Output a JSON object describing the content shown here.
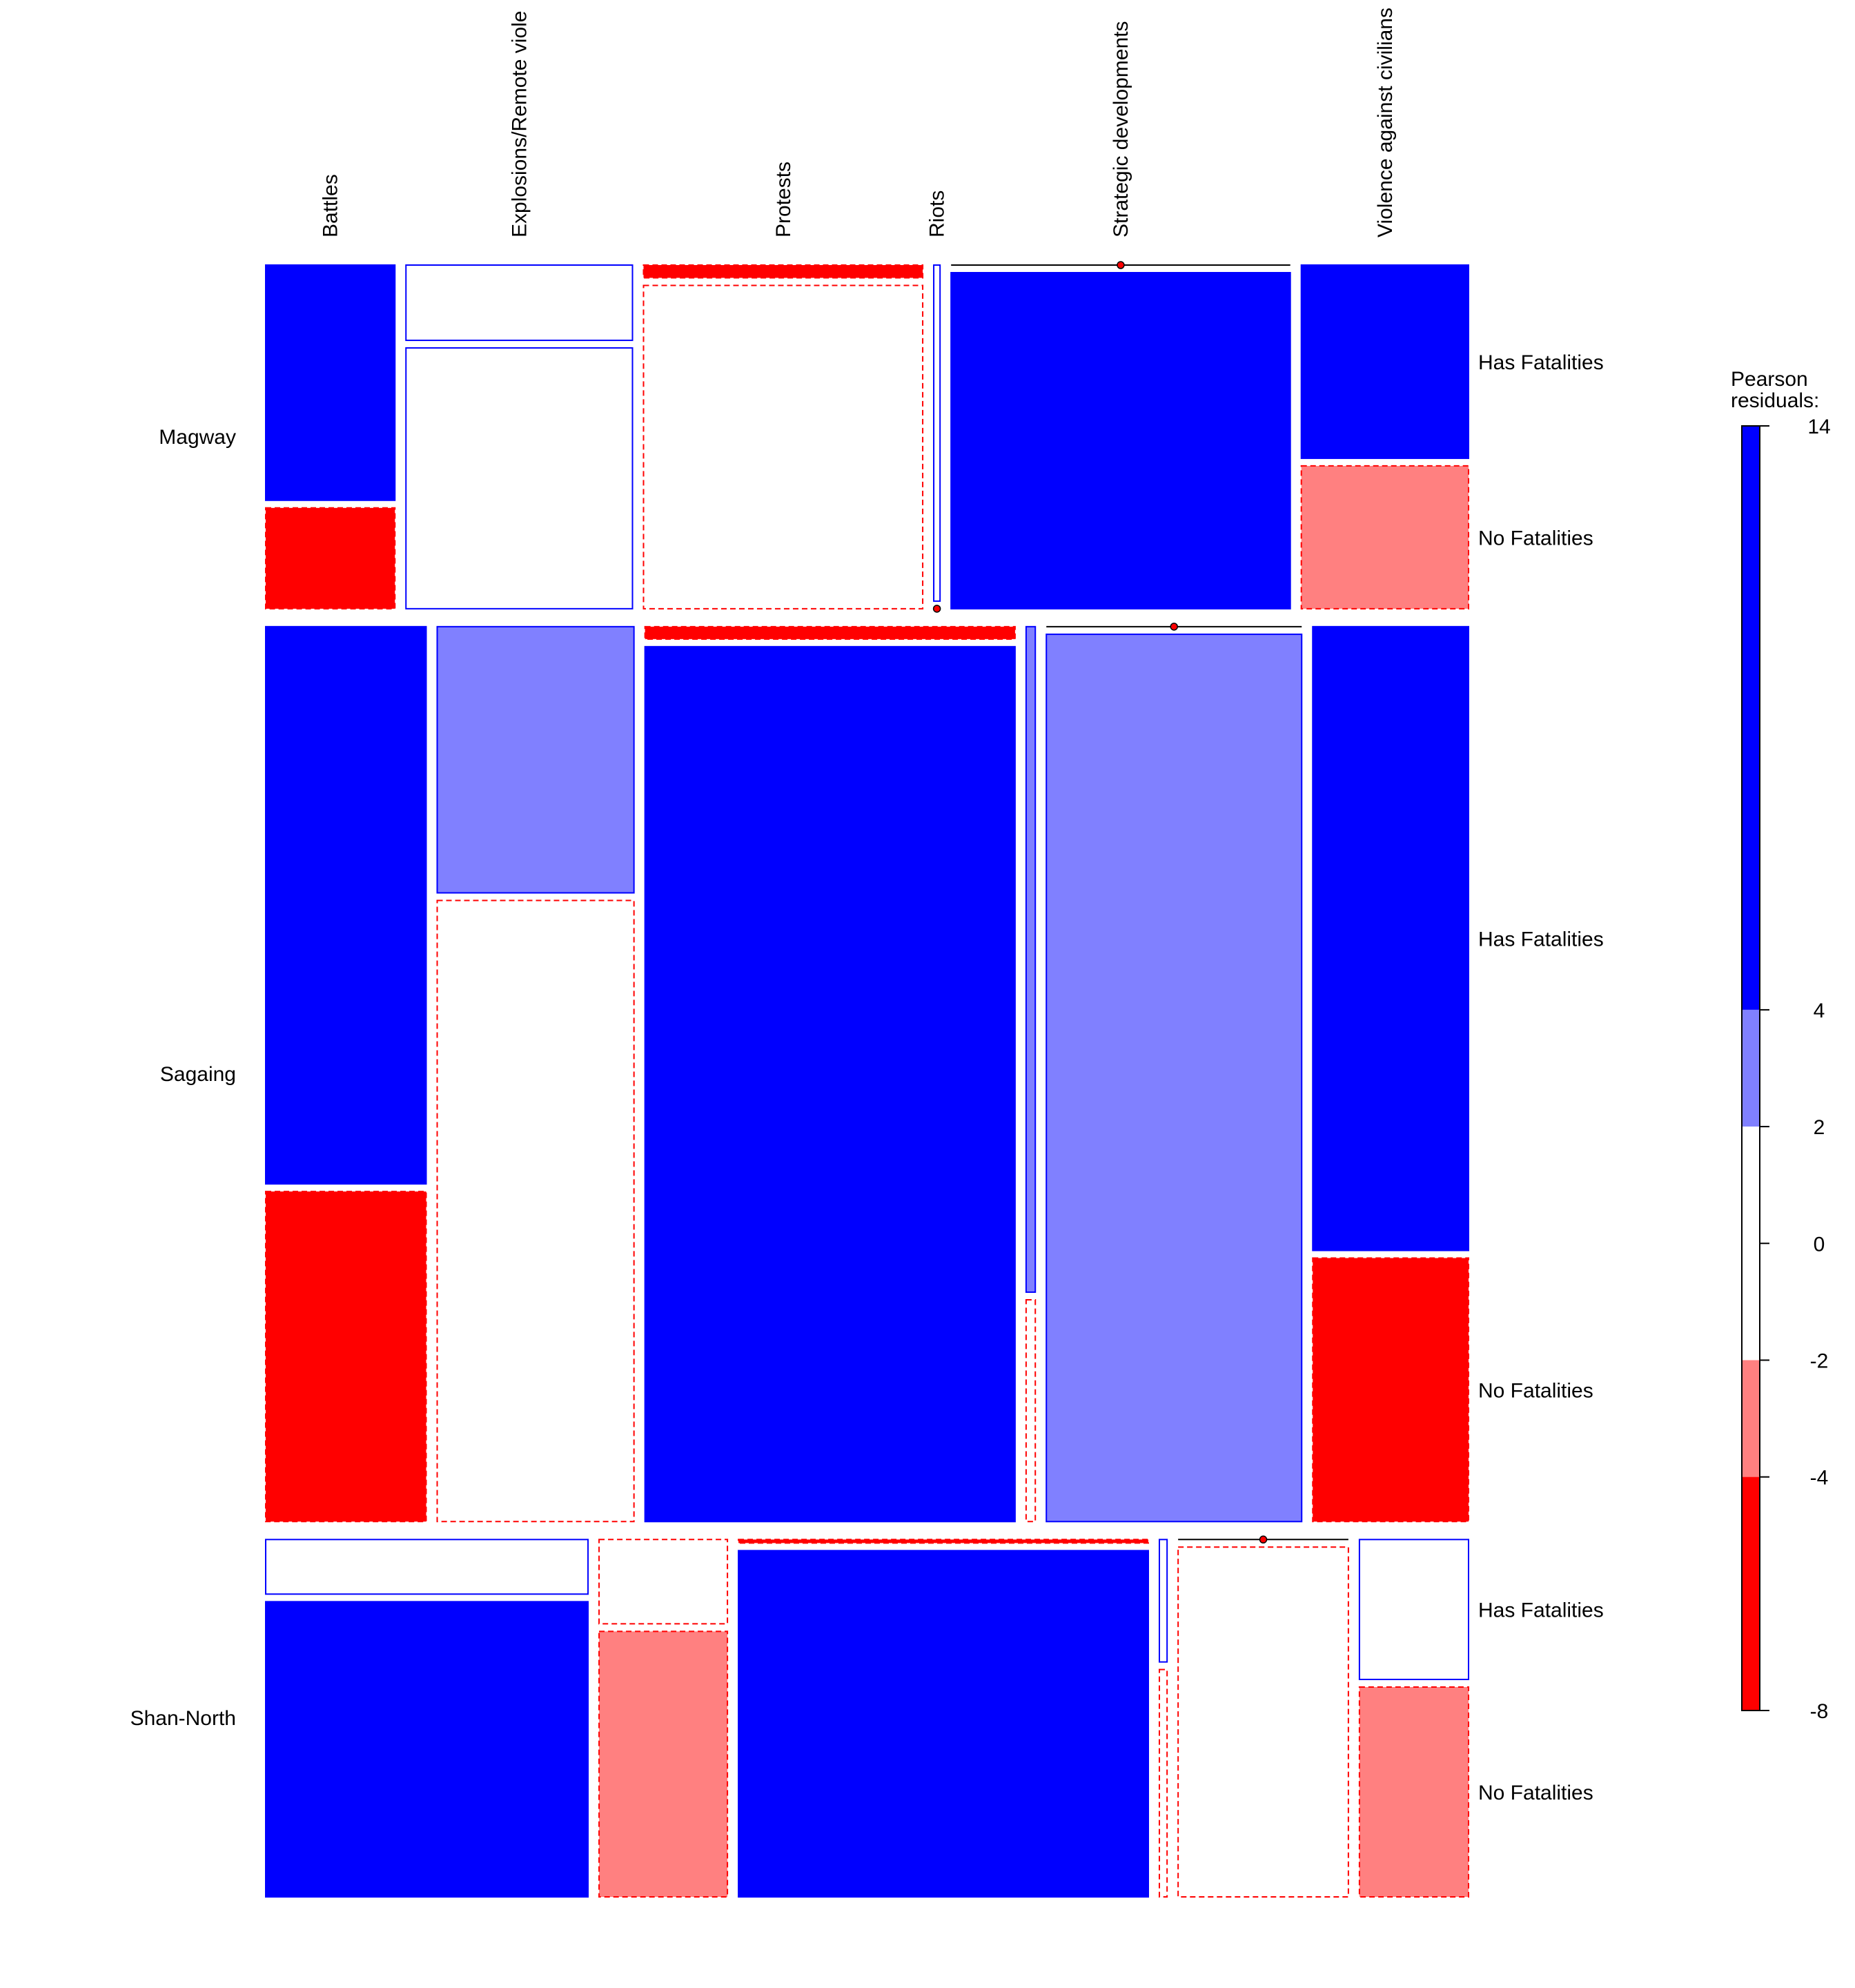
{
  "chart_data": {
    "type": "mosaic",
    "title": "",
    "xlabel": "",
    "ylabel": "",
    "columns": [
      "Battles",
      "Explosions/Remote violence",
      "Protests",
      "Riots",
      "Strategic developments",
      "Violence against civilians"
    ],
    "column_labels": [
      "Battles",
      "Explosions/Remote viole",
      "Protests",
      "Riots",
      "Strategic developments",
      "Violence against civilians"
    ],
    "rows": [
      {
        "name": "Magway",
        "row_share": 0.2885,
        "col_shares": [
          0.1109,
          0.1944,
          0.2396,
          0.0054,
          0.2911,
          0.1435
        ],
        "fatality_labels": [
          "Has Fatalities",
          "No Fatalities"
        ],
        "has_fatalities_share": [
          0.7,
          0.224,
          0.038,
          1.0,
          0.0,
          0.575
        ],
        "residual_levels": [
          [
            "pos_strong",
            "neg_strong"
          ],
          [
            "none_pos",
            "none_pos"
          ],
          [
            "neg_strong",
            "none_neg"
          ],
          [
            "none_pos",
            "empty"
          ],
          [
            "empty",
            "pos_strong"
          ],
          [
            "pos_strong",
            "neg_weak"
          ]
        ]
      },
      {
        "name": "Sagaing",
        "row_share": 0.7513,
        "col_shares": [
          0.1378,
          0.169,
          0.3178,
          0.0079,
          0.2193,
          0.1338
        ],
        "fatality_labels": [
          "Has Fatalities",
          "No Fatalities"
        ],
        "has_fatalities_share": [
          0.628,
          0.3,
          0.014,
          0.75,
          0.0,
          0.703
        ],
        "residual_levels": [
          [
            "pos_strong",
            "neg_strong"
          ],
          [
            "pos_weak",
            "none_neg"
          ],
          [
            "neg_strong",
            "pos_strong"
          ],
          [
            "pos_weak",
            "none_neg"
          ],
          [
            "empty",
            "pos_weak"
          ],
          [
            "pos_strong",
            "neg_strong"
          ]
        ]
      },
      {
        "name": "Shan-North",
        "row_share": 0.3,
        "col_shares": [
          0.2762,
          0.11,
          0.3512,
          0.0066,
          0.1459,
          0.0935
        ],
        "fatality_labels": [
          "Has Fatalities",
          "No Fatalities"
        ],
        "has_fatalities_share": [
          0.156,
          0.241,
          0.01,
          0.35,
          0.0,
          0.4
        ],
        "residual_levels": [
          [
            "none_pos",
            "pos_strong"
          ],
          [
            "none_neg",
            "neg_weak"
          ],
          [
            "neg_strong",
            "pos_strong"
          ],
          [
            "none_pos",
            "none_neg"
          ],
          [
            "empty",
            "none_neg"
          ],
          [
            "none_pos",
            "neg_weak"
          ]
        ]
      }
    ],
    "legend": {
      "title_lines": [
        "Pearson",
        "residuals:"
      ],
      "min": -8,
      "max": 14,
      "ticks": [
        14,
        4,
        2,
        0,
        -2,
        -4,
        -8
      ],
      "bands": [
        {
          "from": 4,
          "to": 14,
          "color": "#0000FF"
        },
        {
          "from": 2,
          "to": 4,
          "color": "#8080FF"
        },
        {
          "from": -2,
          "to": 2,
          "color": "#FFFFFF"
        },
        {
          "from": -4,
          "to": -2,
          "color": "#FF8080"
        },
        {
          "from": -8,
          "to": -4,
          "color": "#FF0000"
        }
      ],
      "placement": "right"
    },
    "colors": {
      "pos_strong": "#0000FF",
      "pos_weak": "#8080FF",
      "neg_strong": "#FF0000",
      "neg_weak": "#FF8080",
      "positive_border": "#0000FF",
      "negative_border": "#FF0000"
    }
  }
}
